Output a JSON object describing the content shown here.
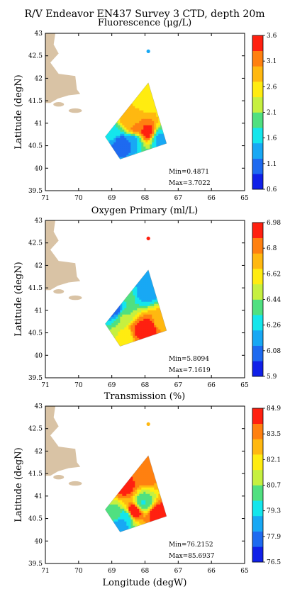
{
  "title": "R/V Endeavor EN437 Survey 3 CTD, depth 20m",
  "shared_x_tick_labels": [
    "71",
    "70",
    "69",
    "68",
    "67",
    "66",
    "65"
  ],
  "shared_y_tick_labels": [
    "43",
    "42.5",
    "42",
    "41.5",
    "41",
    "40.5",
    "40",
    "39.5"
  ],
  "xlabel": "Longitude (degW)",
  "ylabel": "Latitude (degN)",
  "chart_data": [
    {
      "type": "heatmap",
      "subtitle": "Fluorescence (μg/L)",
      "xlabel": "",
      "ylabel": "Latitude (degN)",
      "xlim": [
        71,
        65
      ],
      "ylim": [
        39.5,
        43
      ],
      "x_ticks": [
        71,
        70,
        69,
        68,
        67,
        66,
        65
      ],
      "y_ticks": [
        43,
        42.5,
        42,
        41.5,
        41,
        40.5,
        40,
        39.5
      ],
      "stats": {
        "min": "Min=0.4871",
        "max": "Max=3.7022"
      },
      "colorbar_ticks": [
        "3.6",
        "3.1",
        "2.6",
        "2.1",
        "1.6",
        "1.1",
        "0.6"
      ],
      "colorbar_range": [
        0.6,
        3.6
      ],
      "survey_polygon_lonlat": [
        [
          67.9,
          41.9
        ],
        [
          67.35,
          40.55
        ],
        [
          68.75,
          40.2
        ],
        [
          69.2,
          40.7
        ]
      ],
      "outlier_station": {
        "lon": 67.9,
        "lat": 42.6,
        "value": 1.3
      },
      "hotspots": [
        {
          "lon": 68.55,
          "lat": 41.1,
          "value": 2.9
        },
        {
          "lon": 68.0,
          "lat": 41.55,
          "value": 2.6
        },
        {
          "lon": 67.95,
          "lat": 40.8,
          "value": 3.5
        },
        {
          "lon": 68.3,
          "lat": 40.85,
          "value": 3.1
        },
        {
          "lon": 68.65,
          "lat": 40.55,
          "value": 0.9
        },
        {
          "lon": 68.35,
          "lat": 40.65,
          "value": 1.3
        },
        {
          "lon": 69.0,
          "lat": 40.85,
          "value": 1.7
        },
        {
          "lon": 67.55,
          "lat": 40.65,
          "value": 1.4
        }
      ],
      "base_value": 2.75
    },
    {
      "type": "heatmap",
      "subtitle": "Oxygen Primary (ml/L)",
      "xlabel": "",
      "ylabel": "Latitude (degN)",
      "xlim": [
        71,
        65
      ],
      "ylim": [
        39.5,
        43
      ],
      "x_ticks": [
        71,
        70,
        69,
        68,
        67,
        66,
        65
      ],
      "y_ticks": [
        43,
        42.5,
        42,
        41.5,
        41,
        40.5,
        40,
        39.5
      ],
      "stats": {
        "min": "Min=5.8094",
        "max": "Max=7.1619"
      },
      "colorbar_ticks": [
        "6.98",
        "6.8",
        "6.62",
        "6.44",
        "6.26",
        "6.08",
        "5.9"
      ],
      "colorbar_range": [
        5.9,
        6.98
      ],
      "survey_polygon_lonlat": [
        [
          67.9,
          41.9
        ],
        [
          67.35,
          40.55
        ],
        [
          68.75,
          40.2
        ],
        [
          69.2,
          40.7
        ]
      ],
      "outlier_station": {
        "lon": 67.9,
        "lat": 42.6,
        "value": 6.95
      },
      "hotspots": [
        {
          "lon": 67.9,
          "lat": 40.6,
          "value": 6.98
        },
        {
          "lon": 68.2,
          "lat": 40.55,
          "value": 6.9
        },
        {
          "lon": 67.55,
          "lat": 40.75,
          "value": 6.7
        },
        {
          "lon": 68.6,
          "lat": 40.45,
          "value": 6.55
        },
        {
          "lon": 68.9,
          "lat": 41.0,
          "value": 6.05
        },
        {
          "lon": 68.5,
          "lat": 41.3,
          "value": 6.35
        },
        {
          "lon": 68.0,
          "lat": 41.4,
          "value": 6.15
        },
        {
          "lon": 68.65,
          "lat": 40.85,
          "value": 6.45
        }
      ],
      "base_value": 6.2
    },
    {
      "type": "heatmap",
      "subtitle": "Transmission (%)",
      "xlabel": "Longitude (degW)",
      "ylabel": "Latitude (degN)",
      "xlim": [
        71,
        65
      ],
      "ylim": [
        39.5,
        43
      ],
      "x_ticks": [
        71,
        70,
        69,
        68,
        67,
        66,
        65
      ],
      "y_ticks": [
        43,
        42.5,
        42,
        41.5,
        41,
        40.5,
        40,
        39.5
      ],
      "stats": {
        "min": "Min=76.2152",
        "max": "Max=85.6937"
      },
      "colorbar_ticks": [
        "84.9",
        "83.5",
        "82.1",
        "80.7",
        "79.3",
        "77.9",
        "76.5"
      ],
      "colorbar_range": [
        76.5,
        84.9
      ],
      "survey_polygon_lonlat": [
        [
          67.9,
          41.9
        ],
        [
          67.35,
          40.55
        ],
        [
          68.75,
          40.2
        ],
        [
          69.2,
          40.7
        ]
      ],
      "outlier_station": {
        "lon": 67.9,
        "lat": 42.6,
        "value": 83.0
      },
      "hotspots": [
        {
          "lon": 68.35,
          "lat": 40.65,
          "value": 85.5
        },
        {
          "lon": 67.6,
          "lat": 40.6,
          "value": 85.0
        },
        {
          "lon": 68.6,
          "lat": 41.2,
          "value": 84.4
        },
        {
          "lon": 68.0,
          "lat": 41.5,
          "value": 83.8
        },
        {
          "lon": 68.55,
          "lat": 40.55,
          "value": 79.0
        },
        {
          "lon": 68.95,
          "lat": 40.6,
          "value": 80.5
        },
        {
          "lon": 68.05,
          "lat": 40.85,
          "value": 79.8
        },
        {
          "lon": 68.75,
          "lat": 40.35,
          "value": 78.5
        }
      ],
      "base_value": 83.2
    }
  ],
  "colors": {
    "land": "#d9c3a5",
    "colormap": [
      "#1020e8",
      "#1e6af0",
      "#18a8f4",
      "#14e6ec",
      "#50e080",
      "#c6f040",
      "#ffec10",
      "#ffb810",
      "#ff8010",
      "#ff2010"
    ]
  }
}
